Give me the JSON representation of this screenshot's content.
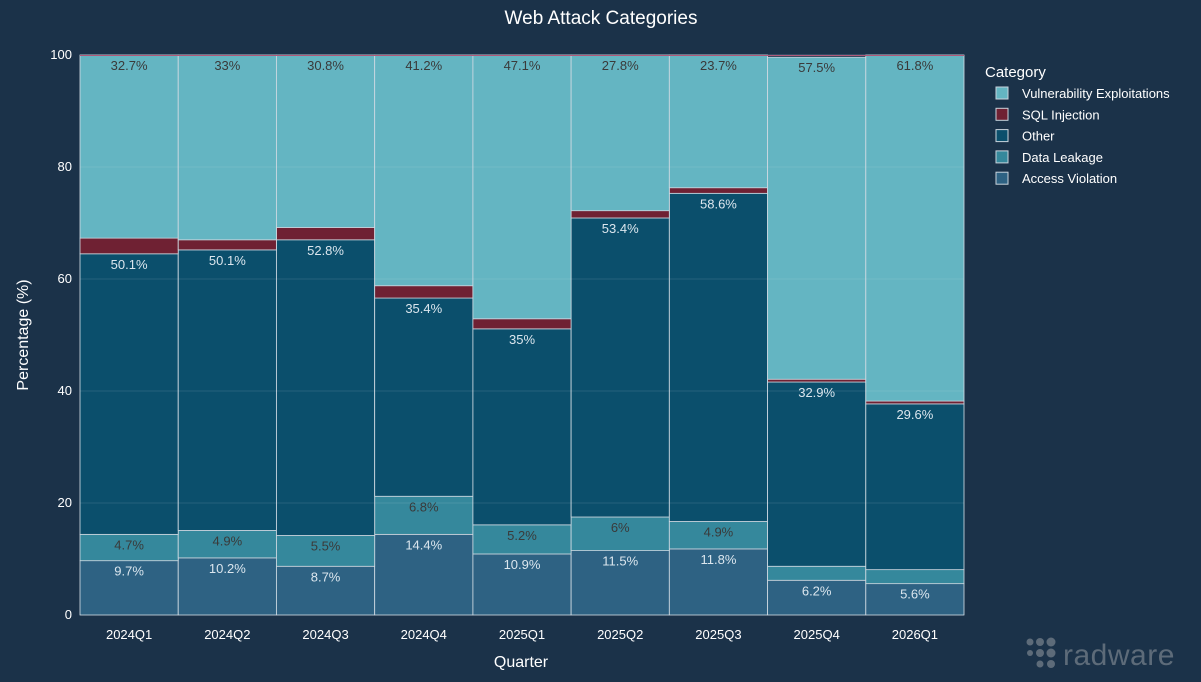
{
  "chart_data": {
    "type": "bar",
    "stacked": true,
    "title": "Web Attack Categories",
    "xlabel": "Quarter",
    "ylabel": "Percentage (%)",
    "ylim": [
      0,
      100
    ],
    "yticks": [
      "0",
      "20",
      "40",
      "60",
      "80",
      "100"
    ],
    "grid": true,
    "legend_title": "Category",
    "legend_position": "right",
    "categories": [
      "2024Q1",
      "2024Q2",
      "2024Q3",
      "2024Q4",
      "2025Q1",
      "2025Q2",
      "2025Q3",
      "2025Q4",
      "2026Q1"
    ],
    "series": [
      {
        "name": "Access Violation",
        "color": "#2e6283",
        "label_color": "#dbe6ee",
        "values": [
          9.7,
          10.2,
          8.7,
          14.4,
          10.9,
          11.5,
          11.8,
          6.2,
          5.6
        ],
        "labels": [
          "9.7%",
          "10.2%",
          "8.7%",
          "14.4%",
          "10.9%",
          "11.5%",
          "11.8%",
          "6.2%",
          "5.6%"
        ]
      },
      {
        "name": "Data Leakage",
        "color": "#35889c",
        "label_color": "#3a3a3a",
        "values": [
          4.7,
          4.9,
          5.5,
          6.8,
          5.2,
          6.0,
          4.9,
          2.5,
          2.5
        ],
        "labels": [
          "4.7%",
          "4.9%",
          "5.5%",
          "6.8%",
          "5.2%",
          "6%",
          "4.9%",
          "",
          ""
        ]
      },
      {
        "name": "Other",
        "color": "#0b4f6c",
        "label_color": "#dbe6ee",
        "values": [
          50.1,
          50.1,
          52.8,
          35.4,
          35.0,
          53.4,
          58.6,
          32.9,
          29.6
        ],
        "labels": [
          "50.1%",
          "50.1%",
          "52.8%",
          "35.4%",
          "35%",
          "53.4%",
          "58.6%",
          "32.9%",
          "29.6%"
        ]
      },
      {
        "name": "SQL Injection",
        "color": "#6f2133",
        "label_color": "#dbe6ee",
        "values": [
          2.8,
          1.8,
          2.2,
          2.2,
          1.8,
          1.3,
          1.0,
          0.5,
          0.5
        ],
        "labels": [
          "",
          "",
          "",
          "",
          "",
          "",
          "",
          "",
          ""
        ]
      },
      {
        "name": "Vulnerability Exploitations",
        "color": "#64b5c2",
        "label_color": "#3a3a3a",
        "values": [
          32.7,
          33.0,
          30.8,
          41.2,
          47.1,
          27.8,
          23.7,
          57.5,
          61.8
        ],
        "labels": [
          "32.7%",
          "33%",
          "30.8%",
          "41.2%",
          "47.1%",
          "27.8%",
          "23.7%",
          "57.5%",
          "61.8%"
        ]
      }
    ],
    "legend_order": [
      "Vulnerability Exploitations",
      "SQL Injection",
      "Other",
      "Data Leakage",
      "Access Violation"
    ]
  },
  "brand": {
    "logo_text": "radware",
    "background": "#1b3249"
  }
}
